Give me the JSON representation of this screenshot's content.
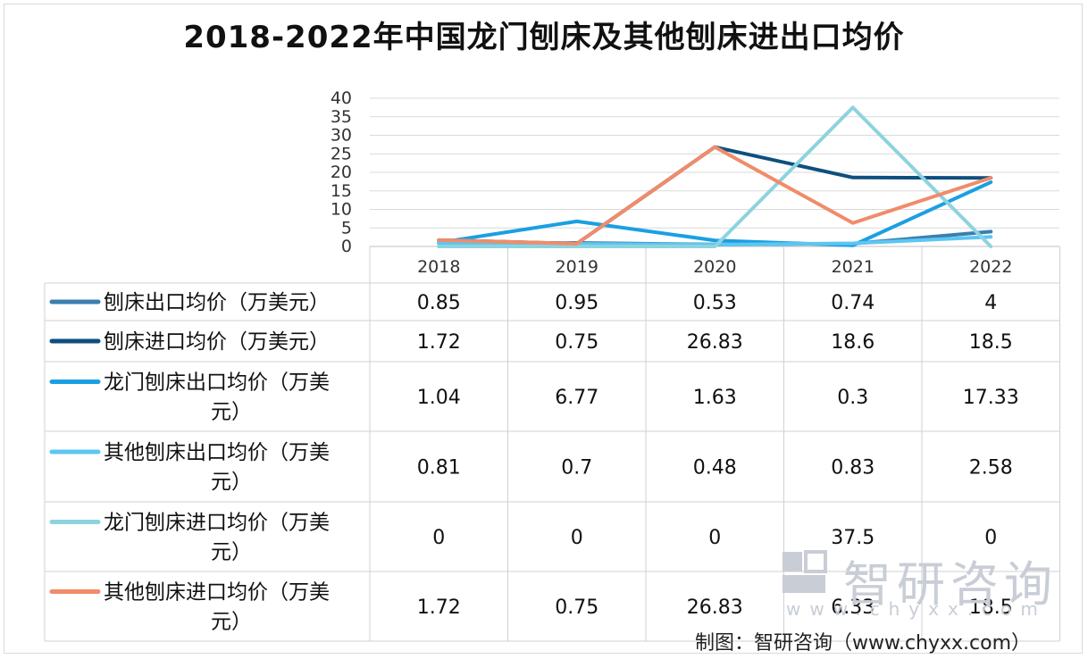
{
  "title": "2018-2022年中国龙门刨床及其他刨床进出口均价",
  "chart_data": {
    "type": "line",
    "categories": [
      "2018",
      "2019",
      "2020",
      "2021",
      "2022"
    ],
    "ylim": [
      0,
      40
    ],
    "yticks": [
      "0",
      "5",
      "10",
      "15",
      "20",
      "25",
      "30",
      "35",
      "40"
    ],
    "grid": true,
    "series": [
      {
        "name": "刨床出口均价（万美元）",
        "label_lines": [
          "刨床出口均价（万美元）"
        ],
        "values": [
          0.85,
          0.95,
          0.53,
          0.74,
          4
        ],
        "display": [
          "0.85",
          "0.95",
          "0.53",
          "0.74",
          "4"
        ],
        "color": "#3a7fb0"
      },
      {
        "name": "刨床进口均价（万美元）",
        "label_lines": [
          "刨床进口均价（万美元）"
        ],
        "values": [
          1.72,
          0.75,
          26.83,
          18.6,
          18.5
        ],
        "display": [
          "1.72",
          "0.75",
          "26.83",
          "18.6",
          "18.5"
        ],
        "color": "#0e4f7f"
      },
      {
        "name": "龙门刨床出口均价（万美元）",
        "label_lines": [
          "龙门刨床出口均价（万美",
          "元）"
        ],
        "values": [
          1.04,
          6.77,
          1.63,
          0.3,
          17.33
        ],
        "display": [
          "1.04",
          "6.77",
          "1.63",
          "0.3",
          "17.33"
        ],
        "color": "#1aa0e2"
      },
      {
        "name": "其他刨床出口均价（万美元）",
        "label_lines": [
          "其他刨床出口均价（万美",
          "元）"
        ],
        "values": [
          0.81,
          0.7,
          0.48,
          0.83,
          2.58
        ],
        "display": [
          "0.81",
          "0.7",
          "0.48",
          "0.83",
          "2.58"
        ],
        "color": "#5cc6f1"
      },
      {
        "name": "龙门刨床进口均价（万美元）",
        "label_lines": [
          "龙门刨床进口均价（万美",
          "元）"
        ],
        "values": [
          0,
          0,
          0,
          37.5,
          0
        ],
        "display": [
          "0",
          "0",
          "0",
          "37.5",
          "0"
        ],
        "color": "#8dd3df"
      },
      {
        "name": "其他刨床进口均价（万美元）",
        "label_lines": [
          "其他刨床进口均价（万美",
          "元）"
        ],
        "values": [
          1.72,
          0.75,
          26.83,
          6.33,
          18.5
        ],
        "display": [
          "1.72",
          "0.75",
          "26.83",
          "6.33",
          "18.5"
        ],
        "color": "#f08c6a"
      }
    ]
  },
  "watermark": {
    "brand": "智研咨询",
    "url": "www.chyxx.com"
  },
  "source": "制图：智研咨询（www.chyxx.com）"
}
